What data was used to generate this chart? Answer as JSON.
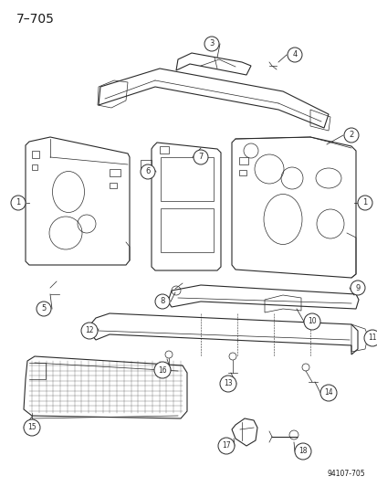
{
  "title": "7–705",
  "footer": "94107-705",
  "bg_color": "#ffffff",
  "line_color": "#2a2a2a",
  "label_color": "#1a1a1a",
  "fig_width": 4.14,
  "fig_height": 5.33,
  "dpi": 100
}
